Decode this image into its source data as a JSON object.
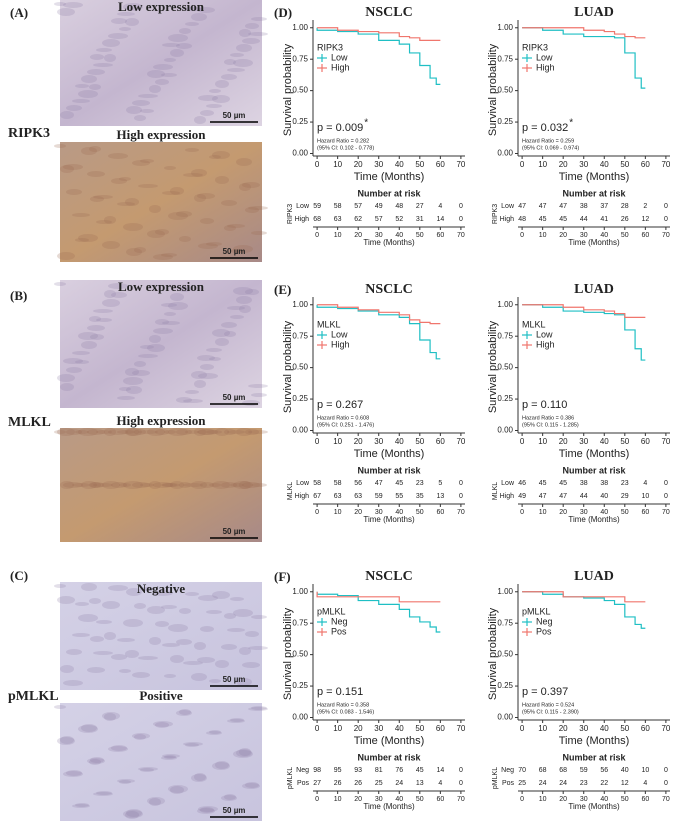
{
  "images": [
    {
      "label": "(A)",
      "marker": "RIPK3",
      "panels": [
        {
          "title": "Low expression",
          "scale": "50 µm"
        },
        {
          "title": "High expression",
          "scale": "50 µm"
        }
      ]
    },
    {
      "label": "(B)",
      "marker": "MLKL",
      "panels": [
        {
          "title": "Low expression",
          "scale": "50 µm"
        },
        {
          "title": "High expression",
          "scale": "50 µm"
        }
      ]
    },
    {
      "label": "(C)",
      "marker": "pMLKL",
      "panels": [
        {
          "title": "Negative",
          "scale": "50 µm"
        },
        {
          "title": "Positive",
          "scale": "50 µm"
        }
      ]
    }
  ],
  "chart_data": [
    {
      "type": "line",
      "panel": "(D)",
      "title": "NSCLC",
      "legend_title": "RIPK3",
      "p_value": "p = 0.009",
      "p_mark": "*",
      "hazard": [
        "Hazard Ratio = 0.282",
        "(95% CI: 0.102 - 0.778)"
      ],
      "x": [
        0,
        10,
        20,
        30,
        40,
        45,
        50,
        55,
        58,
        60
      ],
      "series": [
        {
          "name": "Low",
          "color": "#1fbfc4",
          "values": [
            1,
            0.98,
            0.97,
            0.95,
            0.9,
            0.87,
            0.8,
            0.7,
            0.6,
            0.55
          ],
          "risk": [
            59,
            58,
            57,
            49,
            48,
            27,
            4,
            0
          ]
        },
        {
          "name": "High",
          "color": "#f0766d",
          "values": [
            1,
            1,
            0.98,
            0.97,
            0.96,
            0.93,
            0.92,
            0.9,
            0.9,
            0.9
          ],
          "risk": [
            68,
            63,
            62,
            57,
            52,
            31,
            14,
            0
          ]
        }
      ],
      "xlim": [
        -2,
        72
      ],
      "xticks": [
        0,
        10,
        20,
        30,
        40,
        50,
        60,
        70
      ],
      "ylim": [
        -0.02,
        1.03
      ],
      "yticks": [
        {
          "value": 0,
          "label": "0.00"
        },
        {
          "value": 0.25,
          "label": "0.25"
        },
        {
          "value": 0.5,
          "label": "0.50"
        },
        {
          "value": 0.75,
          "label": "0.75"
        },
        {
          "value": 1,
          "label": "1.00"
        }
      ],
      "xlabel": "Time (Months)",
      "ylabel": "Survival probability",
      "risk_title": "Number at risk"
    },
    {
      "type": "line",
      "title": "LUAD",
      "legend_title": "RIPK3",
      "p_value": "p = 0.032",
      "p_mark": "*",
      "hazard": [
        "Hazard Ratio = 0.259",
        "(95% CI: 0.069 - 0.974)"
      ],
      "x": [
        0,
        10,
        20,
        30,
        40,
        45,
        50,
        55,
        58,
        60
      ],
      "series": [
        {
          "name": "Low",
          "color": "#1fbfc4",
          "values": [
            1,
            1,
            0.98,
            0.95,
            0.93,
            0.93,
            0.92,
            0.8,
            0.6,
            0.52
          ],
          "risk": [
            47,
            47,
            47,
            38,
            37,
            28,
            2,
            0
          ]
        },
        {
          "name": "High",
          "color": "#f0766d",
          "values": [
            1,
            1,
            1,
            1,
            0.98,
            0.97,
            0.95,
            0.93,
            0.92,
            0.92
          ],
          "risk": [
            48,
            45,
            45,
            44,
            41,
            26,
            12,
            0
          ]
        }
      ],
      "xlim": [
        -2,
        72
      ],
      "xticks": [
        0,
        10,
        20,
        30,
        40,
        50,
        60,
        70
      ],
      "ylim": [
        -0.02,
        1.03
      ],
      "yticks": [
        {
          "value": 0,
          "label": "0.00"
        },
        {
          "value": 0.25,
          "label": "0.25"
        },
        {
          "value": 0.5,
          "label": "0.50"
        },
        {
          "value": 0.75,
          "label": "0.75"
        },
        {
          "value": 1,
          "label": "1.00"
        }
      ],
      "xlabel": "Time (Months)",
      "ylabel": "Survival probability",
      "risk_title": "Number at risk"
    },
    {
      "type": "line",
      "panel": "(E)",
      "title": "NSCLC",
      "legend_title": "MLKL",
      "p_value": "p = 0.267",
      "hazard": [
        "Hazard Ratio = 0.608",
        "(95% CI: 0.251 - 1.476)"
      ],
      "x": [
        0,
        10,
        20,
        30,
        40,
        45,
        50,
        55,
        58,
        60
      ],
      "series": [
        {
          "name": "Low",
          "color": "#1fbfc4",
          "values": [
            1,
            0.98,
            0.97,
            0.95,
            0.92,
            0.9,
            0.85,
            0.72,
            0.62,
            0.57
          ],
          "risk": [
            58,
            58,
            56,
            47,
            45,
            23,
            5,
            0
          ]
        },
        {
          "name": "High",
          "color": "#f0766d",
          "values": [
            1,
            1,
            0.98,
            0.96,
            0.94,
            0.92,
            0.88,
            0.86,
            0.85,
            0.85
          ],
          "risk": [
            67,
            63,
            63,
            59,
            55,
            35,
            13,
            0
          ]
        }
      ],
      "xlim": [
        -2,
        72
      ],
      "xticks": [
        0,
        10,
        20,
        30,
        40,
        50,
        60,
        70
      ],
      "ylim": [
        -0.02,
        1.03
      ],
      "yticks": [
        {
          "value": 0,
          "label": "0.00"
        },
        {
          "value": 0.25,
          "label": "0.25"
        },
        {
          "value": 0.5,
          "label": "0.50"
        },
        {
          "value": 0.75,
          "label": "0.75"
        },
        {
          "value": 1,
          "label": "1.00"
        }
      ],
      "xlabel": "Time (Months)",
      "ylabel": "Survival probability",
      "risk_title": "Number at risk"
    },
    {
      "type": "line",
      "title": "LUAD",
      "legend_title": "MLKL",
      "p_value": "p = 0.110",
      "hazard": [
        "Hazard Ratio = 0.386",
        "(95% CI: 0.115 - 1.285)"
      ],
      "x": [
        0,
        10,
        20,
        30,
        40,
        45,
        50,
        55,
        58,
        60
      ],
      "series": [
        {
          "name": "Low",
          "color": "#1fbfc4",
          "values": [
            1,
            1,
            0.98,
            0.95,
            0.94,
            0.93,
            0.92,
            0.8,
            0.65,
            0.56
          ],
          "risk": [
            46,
            45,
            45,
            38,
            38,
            23,
            4,
            0
          ]
        },
        {
          "name": "High",
          "color": "#f0766d",
          "values": [
            1,
            1,
            1,
            0.98,
            0.96,
            0.95,
            0.93,
            0.9,
            0.9,
            0.9
          ],
          "risk": [
            49,
            47,
            47,
            44,
            40,
            29,
            10,
            0
          ]
        }
      ],
      "xlim": [
        -2,
        72
      ],
      "xticks": [
        0,
        10,
        20,
        30,
        40,
        50,
        60,
        70
      ],
      "ylim": [
        -0.02,
        1.03
      ],
      "yticks": [
        {
          "value": 0,
          "label": "0.00"
        },
        {
          "value": 0.25,
          "label": "0.25"
        },
        {
          "value": 0.5,
          "label": "0.50"
        },
        {
          "value": 0.75,
          "label": "0.75"
        },
        {
          "value": 1,
          "label": "1.00"
        }
      ],
      "xlabel": "Time (Months)",
      "ylabel": "Survival probability",
      "risk_title": "Number at risk"
    },
    {
      "type": "line",
      "panel": "(F)",
      "title": "NSCLC",
      "legend_title": "pMLKL",
      "p_value": "p = 0.151",
      "hazard": [
        "Hazard Ratio = 0.358",
        "(95% CI: 0.083 - 1.546)"
      ],
      "x": [
        0,
        10,
        20,
        30,
        40,
        45,
        50,
        55,
        58,
        60
      ],
      "series": [
        {
          "name": "Neg",
          "color": "#1fbfc4",
          "values": [
            1,
            0.98,
            0.97,
            0.93,
            0.9,
            0.86,
            0.8,
            0.76,
            0.72,
            0.68
          ],
          "risk": [
            98,
            95,
            93,
            81,
            76,
            45,
            14,
            0
          ]
        },
        {
          "name": "Pos",
          "color": "#f0766d",
          "values": [
            1,
            0.96,
            0.96,
            0.96,
            0.96,
            0.92,
            0.92,
            0.92,
            0.92,
            0.92
          ],
          "risk": [
            27,
            26,
            26,
            25,
            24,
            13,
            4,
            0
          ]
        }
      ],
      "xlim": [
        -2,
        72
      ],
      "xticks": [
        0,
        10,
        20,
        30,
        40,
        50,
        60,
        70
      ],
      "ylim": [
        -0.02,
        1.03
      ],
      "yticks": [
        {
          "value": 0,
          "label": "0.00"
        },
        {
          "value": 0.25,
          "label": "0.25"
        },
        {
          "value": 0.5,
          "label": "0.50"
        },
        {
          "value": 0.75,
          "label": "0.75"
        },
        {
          "value": 1,
          "label": "1.00"
        }
      ],
      "xlabel": "Time (Months)",
      "ylabel": "Survival probability",
      "risk_title": "Number at risk"
    },
    {
      "type": "line",
      "title": "LUAD",
      "legend_title": "pMLKL",
      "p_value": "p = 0.397",
      "hazard": [
        "Hazard Ratio = 0.524",
        "(95% CI: 0.115 - 2.390)"
      ],
      "x": [
        0,
        10,
        20,
        30,
        40,
        45,
        50,
        55,
        58,
        60
      ],
      "series": [
        {
          "name": "Neg",
          "color": "#1fbfc4",
          "values": [
            1,
            1,
            0.98,
            0.96,
            0.95,
            0.93,
            0.9,
            0.8,
            0.74,
            0.71
          ],
          "risk": [
            70,
            68,
            68,
            59,
            56,
            40,
            10,
            0
          ]
        },
        {
          "name": "Pos",
          "color": "#f0766d",
          "values": [
            1,
            1,
            1,
            0.96,
            0.96,
            0.96,
            0.96,
            0.92,
            0.92,
            0.92
          ],
          "risk": [
            25,
            24,
            24,
            23,
            22,
            12,
            4,
            0
          ]
        }
      ],
      "xlim": [
        -2,
        72
      ],
      "xticks": [
        0,
        10,
        20,
        30,
        40,
        50,
        60,
        70
      ],
      "ylim": [
        -0.02,
        1.03
      ],
      "yticks": [
        {
          "value": 0,
          "label": "0.00"
        },
        {
          "value": 0.25,
          "label": "0.25"
        },
        {
          "value": 0.5,
          "label": "0.50"
        },
        {
          "value": 0.75,
          "label": "0.75"
        },
        {
          "value": 1,
          "label": "1.00"
        }
      ],
      "xlabel": "Time (Months)",
      "ylabel": "Survival probability",
      "risk_title": "Number at risk"
    }
  ]
}
